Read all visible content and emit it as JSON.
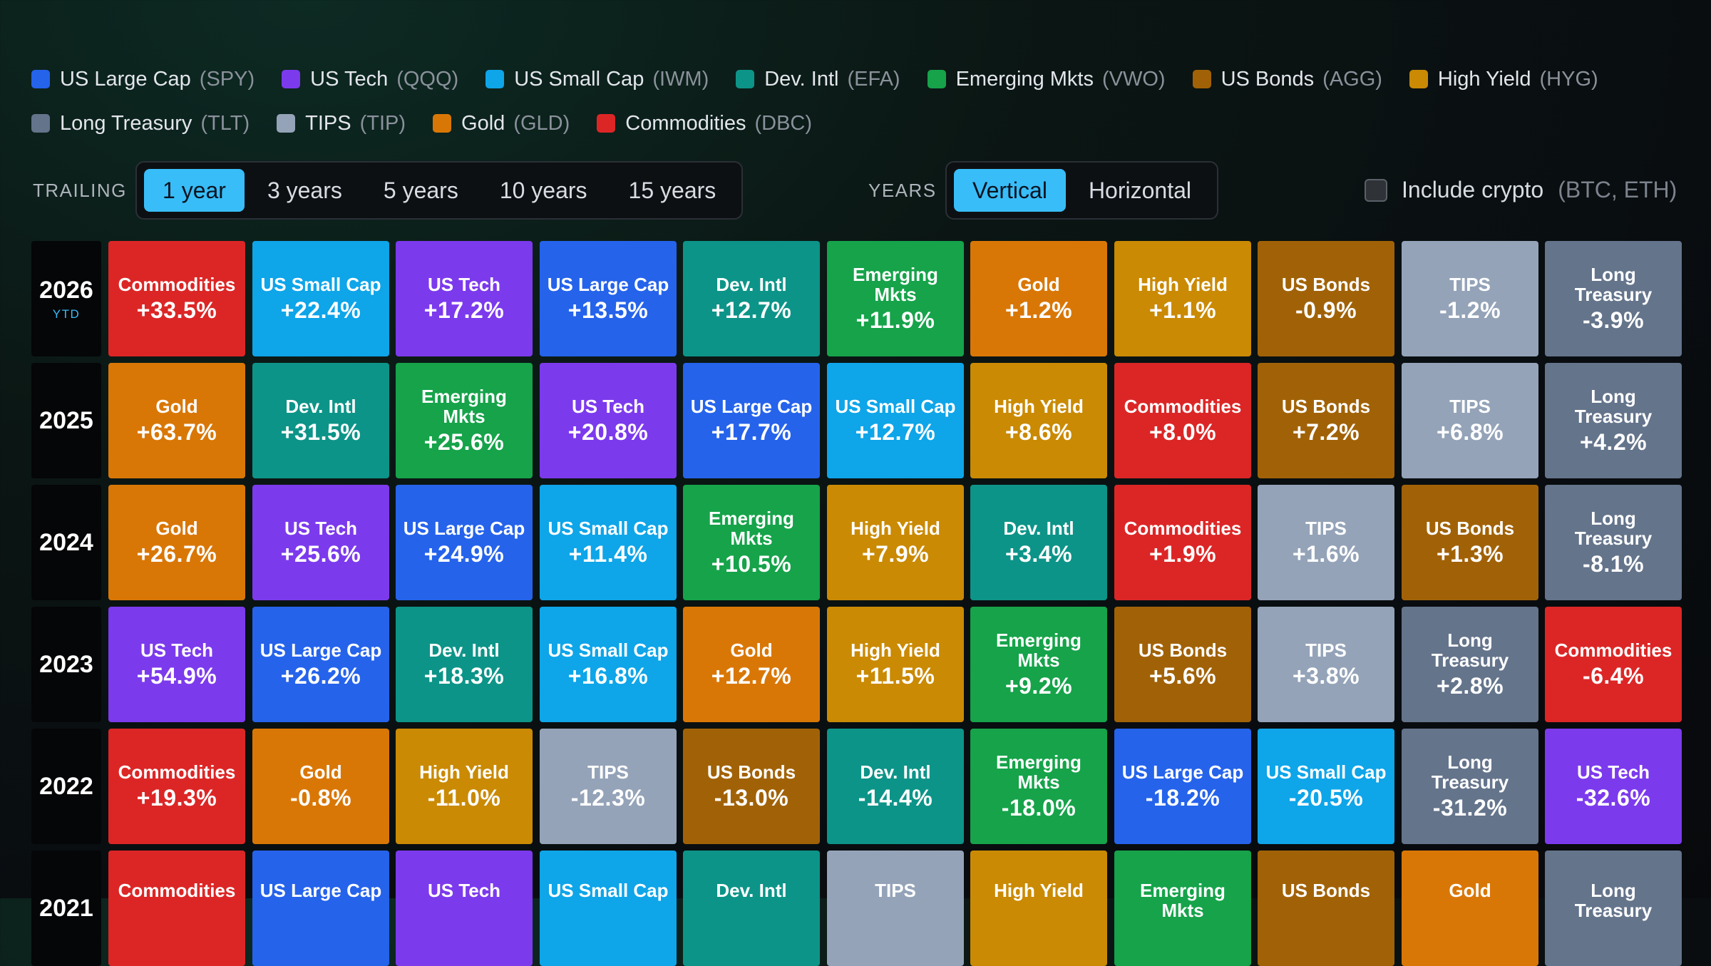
{
  "assets": {
    "spy": {
      "name": "US Large Cap",
      "ticker": "(SPY)",
      "label": "US Large Cap",
      "color": "#2563eb",
      "text": "#ffffff"
    },
    "qqq": {
      "name": "US Tech",
      "ticker": "(QQQ)",
      "label": "US Tech",
      "color": "#7c3aed",
      "text": "#ffffff"
    },
    "iwm": {
      "name": "US Small Cap",
      "ticker": "(IWM)",
      "label": "US Small Cap",
      "color": "#0ea5e9",
      "text": "#ffffff"
    },
    "efa": {
      "name": "Dev. Intl",
      "ticker": "(EFA)",
      "label": "Dev. Intl",
      "color": "#0d9488",
      "text": "#ffffff"
    },
    "vwo": {
      "name": "Emerging Mkts",
      "ticker": "(VWO)",
      "label": "Emerging Mkts",
      "color": "#16a34a",
      "text": "#ffffff"
    },
    "agg": {
      "name": "US Bonds",
      "ticker": "(AGG)",
      "label": "US Bonds",
      "color": "#a16207",
      "text": "#ffffff"
    },
    "hyg": {
      "name": "High Yield",
      "ticker": "(HYG)",
      "label": "High Yield",
      "color": "#ca8a04",
      "text": "#ffffff"
    },
    "tlt": {
      "name": "Long Treasury",
      "ticker": "(TLT)",
      "label": "Long Treasury",
      "color": "#64748b",
      "text": "#ffffff"
    },
    "tip": {
      "name": "TIPS",
      "ticker": "(TIP)",
      "label": "TIPS",
      "color": "#94a3b8",
      "text": "#ffffff"
    },
    "gld": {
      "name": "Gold",
      "ticker": "(GLD)",
      "label": "Gold",
      "color": "#d97706",
      "text": "#ffffff"
    },
    "dbc": {
      "name": "Commodities",
      "ticker": "(DBC)",
      "label": "Commodities",
      "color": "#dc2626",
      "text": "#ffffff"
    }
  },
  "legend_order": [
    "spy",
    "qqq",
    "iwm",
    "efa",
    "vwo",
    "agg",
    "hyg",
    "tlt",
    "tip",
    "gld",
    "dbc"
  ],
  "controls": {
    "trailing_label": "TRAILING",
    "trailing_options": [
      {
        "label": "1 year",
        "active": true
      },
      {
        "label": "3 years",
        "active": false
      },
      {
        "label": "5 years",
        "active": false
      },
      {
        "label": "10 years",
        "active": false
      },
      {
        "label": "15 years",
        "active": false
      }
    ],
    "years_label": "YEARS",
    "years_options": [
      {
        "label": "Vertical",
        "active": true
      },
      {
        "label": "Horizontal",
        "active": false
      }
    ],
    "crypto_checked": false,
    "crypto_label": "Include crypto",
    "crypto_hint": "(BTC, ETH)"
  },
  "rows": [
    {
      "year": "2026",
      "sub": "YTD",
      "cells": [
        {
          "a": "dbc",
          "v": "+33.5%"
        },
        {
          "a": "iwm",
          "v": "+22.4%"
        },
        {
          "a": "qqq",
          "v": "+17.2%"
        },
        {
          "a": "spy",
          "v": "+13.5%"
        },
        {
          "a": "efa",
          "v": "+12.7%"
        },
        {
          "a": "vwo",
          "v": "+11.9%"
        },
        {
          "a": "gld",
          "v": "+1.2%"
        },
        {
          "a": "hyg",
          "v": "+1.1%"
        },
        {
          "a": "agg",
          "v": "-0.9%"
        },
        {
          "a": "tip",
          "v": "-1.2%"
        },
        {
          "a": "tlt",
          "v": "-3.9%"
        }
      ]
    },
    {
      "year": "2025",
      "cells": [
        {
          "a": "gld",
          "v": "+63.7%"
        },
        {
          "a": "efa",
          "v": "+31.5%"
        },
        {
          "a": "vwo",
          "v": "+25.6%"
        },
        {
          "a": "qqq",
          "v": "+20.8%"
        },
        {
          "a": "spy",
          "v": "+17.7%"
        },
        {
          "a": "iwm",
          "v": "+12.7%"
        },
        {
          "a": "hyg",
          "v": "+8.6%"
        },
        {
          "a": "dbc",
          "v": "+8.0%"
        },
        {
          "a": "agg",
          "v": "+7.2%"
        },
        {
          "a": "tip",
          "v": "+6.8%"
        },
        {
          "a": "tlt",
          "v": "+4.2%"
        }
      ]
    },
    {
      "year": "2024",
      "cells": [
        {
          "a": "gld",
          "v": "+26.7%"
        },
        {
          "a": "qqq",
          "v": "+25.6%"
        },
        {
          "a": "spy",
          "v": "+24.9%"
        },
        {
          "a": "iwm",
          "v": "+11.4%"
        },
        {
          "a": "vwo",
          "v": "+10.5%"
        },
        {
          "a": "hyg",
          "v": "+7.9%"
        },
        {
          "a": "efa",
          "v": "+3.4%"
        },
        {
          "a": "dbc",
          "v": "+1.9%"
        },
        {
          "a": "tip",
          "v": "+1.6%"
        },
        {
          "a": "agg",
          "v": "+1.3%"
        },
        {
          "a": "tlt",
          "v": "-8.1%"
        }
      ]
    },
    {
      "year": "2023",
      "cells": [
        {
          "a": "qqq",
          "v": "+54.9%"
        },
        {
          "a": "spy",
          "v": "+26.2%"
        },
        {
          "a": "efa",
          "v": "+18.3%"
        },
        {
          "a": "iwm",
          "v": "+16.8%"
        },
        {
          "a": "gld",
          "v": "+12.7%"
        },
        {
          "a": "hyg",
          "v": "+11.5%"
        },
        {
          "a": "vwo",
          "v": "+9.2%"
        },
        {
          "a": "agg",
          "v": "+5.6%"
        },
        {
          "a": "tip",
          "v": "+3.8%"
        },
        {
          "a": "tlt",
          "v": "+2.8%"
        },
        {
          "a": "dbc",
          "v": "-6.4%"
        }
      ]
    },
    {
      "year": "2022",
      "cells": [
        {
          "a": "dbc",
          "v": "+19.3%"
        },
        {
          "a": "gld",
          "v": "-0.8%"
        },
        {
          "a": "hyg",
          "v": "-11.0%"
        },
        {
          "a": "tip",
          "v": "-12.3%"
        },
        {
          "a": "agg",
          "v": "-13.0%"
        },
        {
          "a": "efa",
          "v": "-14.4%"
        },
        {
          "a": "vwo",
          "v": "-18.0%"
        },
        {
          "a": "spy",
          "v": "-18.2%"
        },
        {
          "a": "iwm",
          "v": "-20.5%"
        },
        {
          "a": "tlt",
          "v": "-31.2%"
        },
        {
          "a": "qqq",
          "v": "-32.6%"
        }
      ]
    },
    {
      "year": "2021",
      "cells": [
        {
          "a": "dbc",
          "v": ""
        },
        {
          "a": "spy",
          "v": ""
        },
        {
          "a": "qqq",
          "v": ""
        },
        {
          "a": "iwm",
          "v": ""
        },
        {
          "a": "efa",
          "v": ""
        },
        {
          "a": "tip",
          "v": ""
        },
        {
          "a": "hyg",
          "v": ""
        },
        {
          "a": "vwo",
          "v": ""
        },
        {
          "a": "agg",
          "v": ""
        },
        {
          "a": "gld",
          "v": ""
        },
        {
          "a": "tlt",
          "v": ""
        }
      ]
    }
  ]
}
